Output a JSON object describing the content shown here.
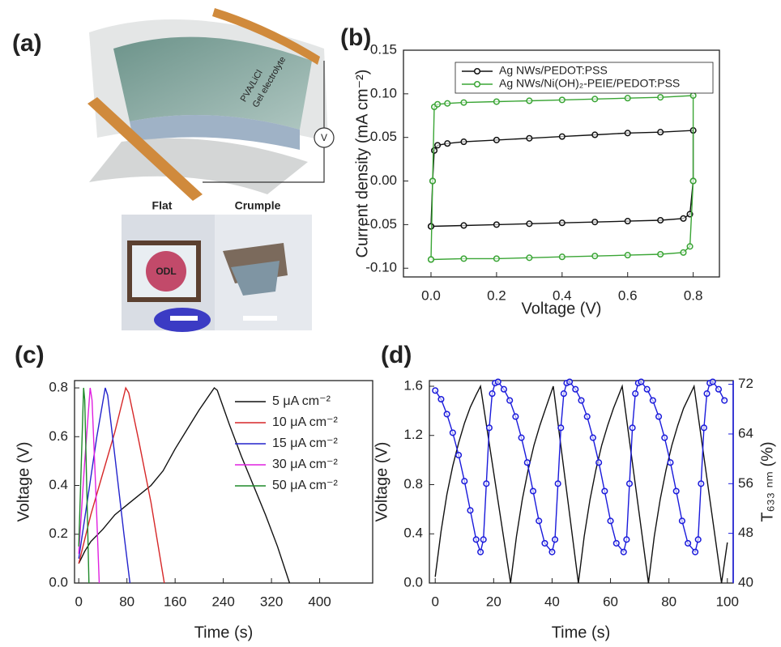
{
  "panel_labels": [
    "(a)",
    "(b)",
    "(c)",
    "(d)"
  ],
  "illustration": {
    "layer_label": [
      "PVA/LiCl",
      "Gel electrolyte"
    ],
    "meter": "V",
    "photo_labels": [
      "Flat",
      "Crumple"
    ],
    "logo": "ODL"
  },
  "chart_data": [
    {
      "type": "line",
      "xlabel": "Voltage (V)",
      "ylabel": "Current density (mA cm⁻²)",
      "xlim": [
        -0.084,
        0.88
      ],
      "ylim": [
        -0.11,
        0.15
      ],
      "xticks": [
        {
          "value": 0,
          "label": "0.0"
        },
        0.2,
        0.4,
        0.6,
        0.8
      ],
      "yticks": [
        0.15,
        {
          "value": 0.1,
          "label": "0.10"
        },
        0.05,
        {
          "value": 0,
          "label": "0.00"
        },
        -0.05,
        {
          "value": -0.1,
          "label": "-0.10"
        }
      ],
      "legend": "upper left",
      "legend_frame": true,
      "series": [
        {
          "name": "Ag NWs/PEDOT:PSS",
          "color": "#111111",
          "marker": "o",
          "x": [
            0,
            0.005,
            0.01,
            0.02,
            0.05,
            0.1,
            0.2,
            0.3,
            0.4,
            0.5,
            0.6,
            0.7,
            0.8,
            0.8,
            0.79,
            0.77,
            0.7,
            0.6,
            0.5,
            0.4,
            0.3,
            0.2,
            0.1,
            0
          ],
          "values": [
            -0.052,
            0,
            0.035,
            0.041,
            0.043,
            0.045,
            0.047,
            0.049,
            0.051,
            0.053,
            0.055,
            0.056,
            0.058,
            0,
            -0.038,
            -0.043,
            -0.045,
            -0.046,
            -0.047,
            -0.048,
            -0.049,
            -0.05,
            -0.051,
            -0.052
          ]
        },
        {
          "name": "Ag NWs/Ni(OH)₂-PEIE/PEDOT:PSS",
          "color": "#3aa535",
          "marker": "o",
          "x": [
            0,
            0.005,
            0.01,
            0.02,
            0.05,
            0.1,
            0.2,
            0.3,
            0.4,
            0.5,
            0.6,
            0.7,
            0.8,
            0.8,
            0.79,
            0.77,
            0.7,
            0.6,
            0.5,
            0.4,
            0.3,
            0.2,
            0.1,
            0
          ],
          "values": [
            -0.09,
            0,
            0.085,
            0.088,
            0.089,
            0.09,
            0.091,
            0.092,
            0.093,
            0.094,
            0.095,
            0.096,
            0.098,
            0,
            -0.075,
            -0.082,
            -0.084,
            -0.085,
            -0.086,
            -0.087,
            -0.088,
            -0.089,
            -0.089,
            -0.09
          ]
        }
      ]
    },
    {
      "type": "line",
      "xlabel": "Time (s)",
      "ylabel": "Voltage (V)",
      "xlim": [
        -7,
        488
      ],
      "ylim": [
        0,
        0.83
      ],
      "xticks": [
        0,
        80,
        160,
        240,
        320,
        400
      ],
      "yticks": [
        {
          "value": 0,
          "label": "0.0"
        },
        0.2,
        0.4,
        0.6,
        0.8
      ],
      "legend": "upper right",
      "legend_frame": false,
      "series": [
        {
          "name": "5 μA cm⁻²",
          "color": "#111111",
          "x": [
            0,
            10,
            20,
            40,
            60,
            80,
            100,
            120,
            140,
            160,
            180,
            200,
            225,
            230,
            250,
            270,
            290,
            310,
            330,
            350
          ],
          "values": [
            0.08,
            0.13,
            0.17,
            0.22,
            0.28,
            0.32,
            0.36,
            0.4,
            0.46,
            0.55,
            0.63,
            0.71,
            0.8,
            0.79,
            0.65,
            0.52,
            0.4,
            0.28,
            0.15,
            0
          ]
        },
        {
          "name": "10 μA cm⁻²",
          "color": "#d62728",
          "x": [
            0,
            20,
            40,
            60,
            78,
            83,
            100,
            120,
            142
          ],
          "values": [
            0.08,
            0.28,
            0.45,
            0.62,
            0.8,
            0.78,
            0.58,
            0.33,
            0
          ]
        },
        {
          "name": "15 μA cm⁻²",
          "color": "#2323cc",
          "x": [
            0,
            15,
            30,
            44,
            48,
            60,
            75,
            85
          ],
          "values": [
            0.1,
            0.35,
            0.6,
            0.8,
            0.77,
            0.52,
            0.2,
            0
          ]
        },
        {
          "name": "30 μA cm⁻²",
          "color": "#e020e0",
          "x": [
            0,
            10,
            19,
            22,
            28,
            34
          ],
          "values": [
            0.12,
            0.5,
            0.8,
            0.75,
            0.4,
            0
          ]
        },
        {
          "name": "50 μA cm⁻²",
          "color": "#1f8a2a",
          "x": [
            0,
            8,
            10,
            17
          ],
          "values": [
            0.15,
            0.8,
            0.75,
            0
          ]
        }
      ]
    },
    {
      "type": "line",
      "xlabel": "Time (s)",
      "ylabel": "Voltage (V)",
      "y2label": "T₆₃₃ ₙₘ (%)",
      "y2color": "#1a1adb",
      "xlim": [
        -2,
        102
      ],
      "ylim": [
        0,
        1.646
      ],
      "y2lim": [
        40,
        72.6
      ],
      "xticks": [
        0,
        20,
        40,
        60,
        80,
        100
      ],
      "yticks": [
        {
          "value": 0,
          "label": "0.0"
        },
        0.4,
        0.8,
        1.2,
        1.6
      ],
      "y2ticks": [
        40,
        48,
        56,
        64,
        72
      ],
      "series": [
        {
          "color": "#111111",
          "x": [
            0,
            2,
            4,
            6,
            8,
            10,
            12,
            14,
            15.5,
            25.8,
            27.8,
            29.8,
            31.8,
            33.8,
            35.8,
            37.8,
            40.4,
            49,
            51,
            53,
            55,
            57,
            59,
            61,
            64,
            73,
            75,
            77,
            79,
            81,
            83,
            85,
            88.6,
            98,
            100
          ],
          "values": [
            0.05,
            0.42,
            0.72,
            0.95,
            1.14,
            1.3,
            1.43,
            1.53,
            1.6,
            0,
            0.38,
            0.68,
            0.92,
            1.12,
            1.28,
            1.42,
            1.6,
            0,
            0.38,
            0.68,
            0.92,
            1.12,
            1.28,
            1.42,
            1.6,
            0,
            0.38,
            0.68,
            0.92,
            1.12,
            1.28,
            1.42,
            1.6,
            0,
            0.33
          ]
        },
        {
          "color": "#1a1adb",
          "axis": "y2",
          "marker": "o",
          "x": [
            0,
            2,
            4,
            6,
            8,
            10,
            12,
            14,
            15.5,
            16.5,
            17.5,
            18.5,
            19.5,
            20.5,
            21.5,
            23.5,
            25.5,
            27.5,
            29.5,
            31.5,
            33.5,
            35.5,
            37.5,
            40,
            41,
            42,
            43,
            44,
            45,
            46,
            48,
            50,
            52,
            54,
            56,
            58,
            60,
            62,
            64.5,
            65.5,
            66.5,
            67.5,
            68.5,
            69.5,
            70.5,
            72.5,
            74.5,
            76.5,
            78.5,
            80.5,
            82.5,
            84.5,
            86.5,
            89,
            90,
            91,
            92,
            93,
            94,
            95,
            97,
            99
          ],
          "values": [
            71,
            69.6,
            67.2,
            64.2,
            60.6,
            56.4,
            51.7,
            47,
            45,
            47,
            56,
            65,
            70.5,
            72.2,
            72.4,
            71.2,
            69.4,
            66.8,
            63.4,
            59.4,
            54.8,
            50,
            46.4,
            45,
            47,
            56,
            65,
            70.5,
            72.2,
            72.4,
            71.2,
            69.4,
            66.8,
            63.4,
            59.4,
            54.8,
            50,
            46.4,
            45,
            47,
            56,
            65,
            70.5,
            72.2,
            72.4,
            71.2,
            69.4,
            66.8,
            63.4,
            59.4,
            54.8,
            50,
            46.4,
            45,
            47,
            56,
            65,
            70.5,
            72.2,
            72.4,
            71.2,
            69.4
          ]
        }
      ]
    }
  ]
}
